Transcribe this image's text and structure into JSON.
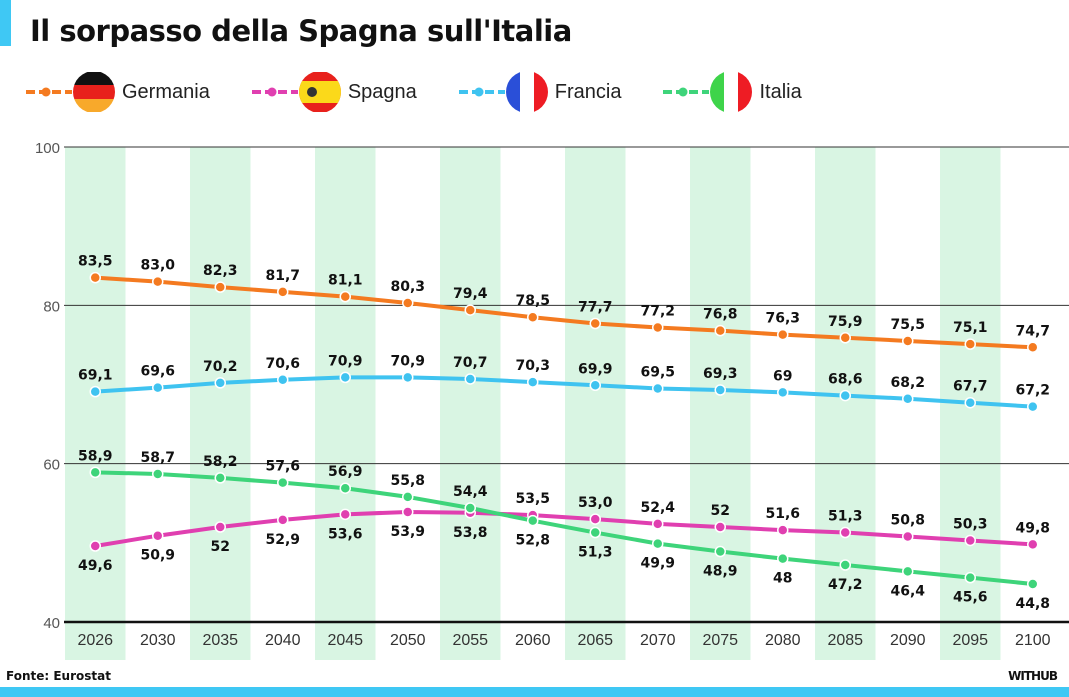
{
  "title": "Il sorpasso della Spagna sull'Italia",
  "source": "Fonte: Eurostat",
  "logo": "WITHUB",
  "colors": {
    "accent": "#3fc8f4",
    "column_band": "#d9f5e3"
  },
  "chart_data": {
    "type": "line",
    "title": "Il sorpasso della Spagna sull'Italia",
    "xlabel": "",
    "ylabel": "",
    "categories": [
      "2026",
      "2030",
      "2035",
      "2040",
      "2045",
      "2050",
      "2055",
      "2060",
      "2065",
      "2070",
      "2075",
      "2080",
      "2085",
      "2090",
      "2095",
      "2100"
    ],
    "ylim": [
      40,
      100
    ],
    "yticks": [
      40,
      60,
      80,
      100
    ],
    "grid": true,
    "legend": "top",
    "series": [
      {
        "name": "Germania",
        "color": "#f47a20",
        "flag": "germany-flag",
        "values": [
          83.5,
          83.0,
          82.3,
          81.7,
          81.1,
          80.3,
          79.4,
          78.5,
          77.7,
          77.2,
          76.8,
          76.3,
          75.9,
          75.5,
          75.1,
          74.7
        ],
        "labels": [
          "83,5",
          "83,0",
          "82,3",
          "81,7",
          "81,1",
          "80,3",
          "79,4",
          "78,5",
          "77,7",
          "77,2",
          "76,8",
          "76,3",
          "75,9",
          "75,5",
          "75,1",
          "74,7"
        ]
      },
      {
        "name": "Spagna",
        "color": "#e03fb0",
        "flag": "spain-flag",
        "values": [
          49.6,
          50.9,
          52,
          52.9,
          53.6,
          53.9,
          53.8,
          53.5,
          53.0,
          52.4,
          52,
          51.6,
          51.3,
          50.8,
          50.3,
          49.8
        ],
        "labels": [
          "49,6",
          "50,9",
          "52",
          "52,9",
          "53,6",
          "53,9",
          "53,8",
          "53,5",
          "53,0",
          "52,4",
          "52",
          "51,6",
          "51,3",
          "50,8",
          "50,3",
          "49,8"
        ]
      },
      {
        "name": "Francia",
        "color": "#3fc3f0",
        "flag": "france-flag",
        "values": [
          69.1,
          69.6,
          70.2,
          70.6,
          70.9,
          70.9,
          70.7,
          70.3,
          69.9,
          69.5,
          69.3,
          69,
          68.6,
          68.2,
          67.7,
          67.2
        ],
        "labels": [
          "69,1",
          "69,6",
          "70,2",
          "70,6",
          "70,9",
          "70,9",
          "70,7",
          "70,3",
          "69,9",
          "69,5",
          "69,3",
          "69",
          "68,6",
          "68,2",
          "67,7",
          "67,2"
        ]
      },
      {
        "name": "Italia",
        "color": "#3ed47a",
        "flag": "italy-flag",
        "values": [
          58.9,
          58.7,
          58.2,
          57.6,
          56.9,
          55.8,
          54.4,
          52.8,
          51.3,
          49.9,
          48.9,
          48,
          47.2,
          46.4,
          45.6,
          44.8
        ],
        "labels": [
          "58,9",
          "58,7",
          "58,2",
          "57,6",
          "56,9",
          "55,8",
          "54,4",
          "52,8",
          "51,3",
          "49,9",
          "48,9",
          "48",
          "47,2",
          "46,4",
          "45,6",
          "44,8"
        ]
      }
    ]
  }
}
